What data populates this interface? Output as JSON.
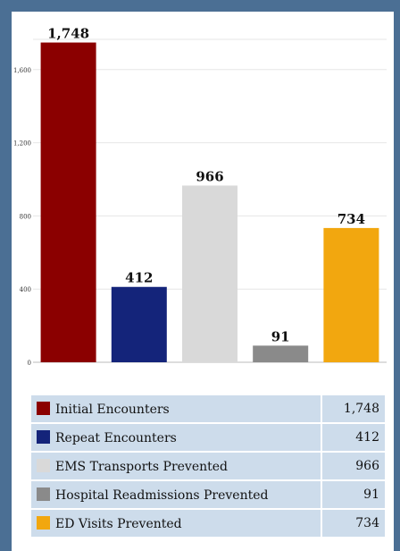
{
  "chart_data": {
    "type": "bar",
    "categories": [
      "Initial Encounters",
      "Repeat Encounters",
      "EMS Transports Prevented",
      "Hospital Readmissions Prevented",
      "ED Visits Prevented"
    ],
    "values": [
      1748,
      412,
      966,
      91,
      734
    ],
    "value_labels": [
      "1,748",
      "412",
      "966",
      "91",
      "734"
    ],
    "colors": [
      "#8b0000",
      "#14247a",
      "#d9d9d9",
      "#8a8a8a",
      "#f2a70f"
    ],
    "yticks": [
      0,
      400,
      800,
      1200,
      1600
    ],
    "ytick_labels": [
      "0",
      "400",
      "800",
      "1,200",
      "1,600"
    ],
    "ylim": [
      0,
      1780
    ],
    "grid": true,
    "legend": "bottom-table"
  }
}
